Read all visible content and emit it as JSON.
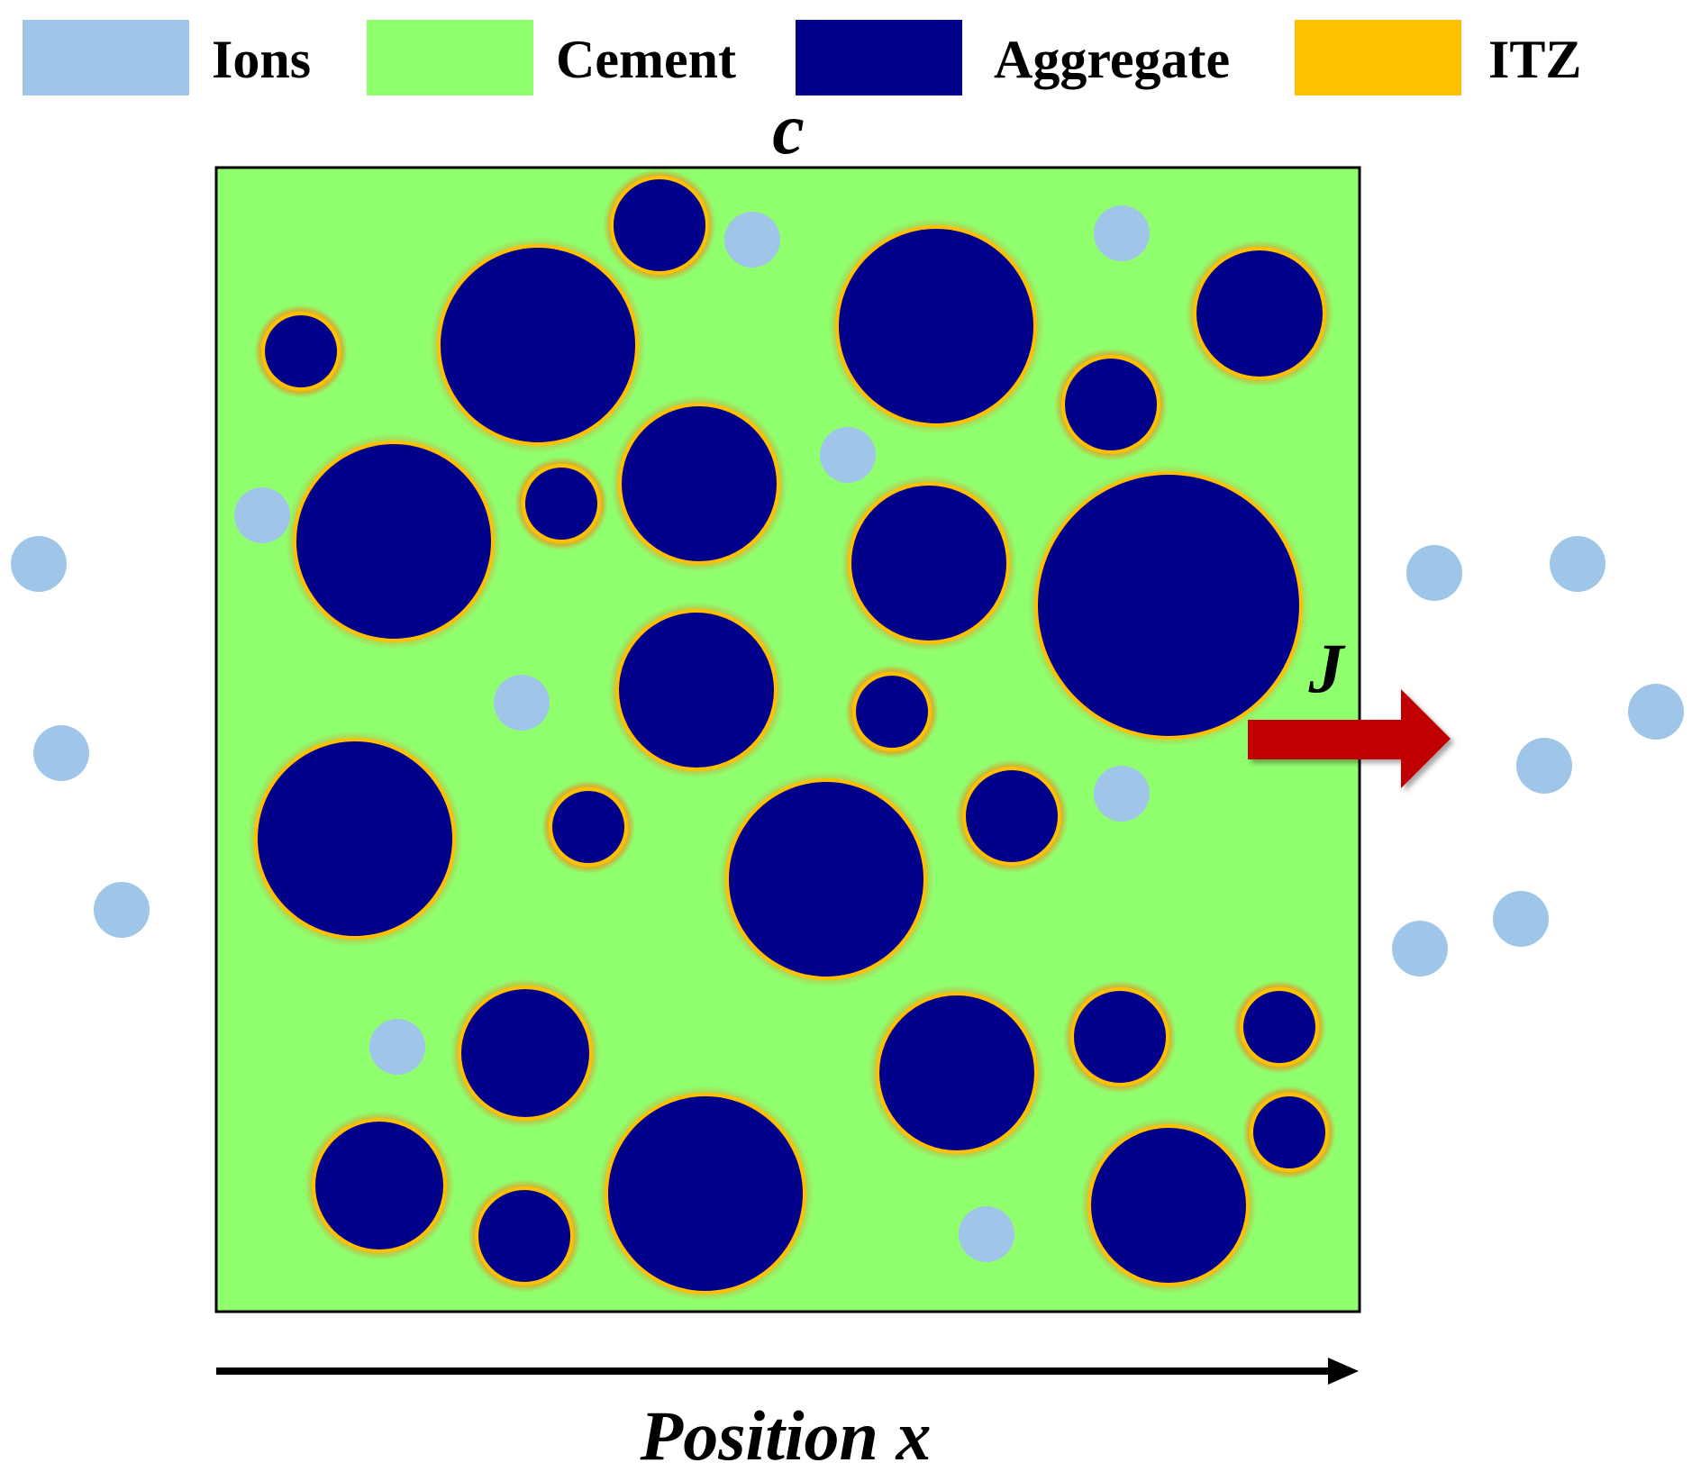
{
  "legend": {
    "items": [
      {
        "key": "ions",
        "label": "Ions",
        "color": "#9fc5e8"
      },
      {
        "key": "cement",
        "label": "Cement",
        "color": "#90ff6e"
      },
      {
        "key": "aggregate",
        "label": "Aggregate",
        "color": "#00008b"
      },
      {
        "key": "itz",
        "label": "ITZ",
        "color": "#ffc000"
      }
    ]
  },
  "labels": {
    "concentration": "c",
    "flux": "J",
    "position_axis": "Position x"
  },
  "colors": {
    "border": "#000000",
    "flux_arrow": "#c00000",
    "axis_arrow": "#000000"
  }
}
